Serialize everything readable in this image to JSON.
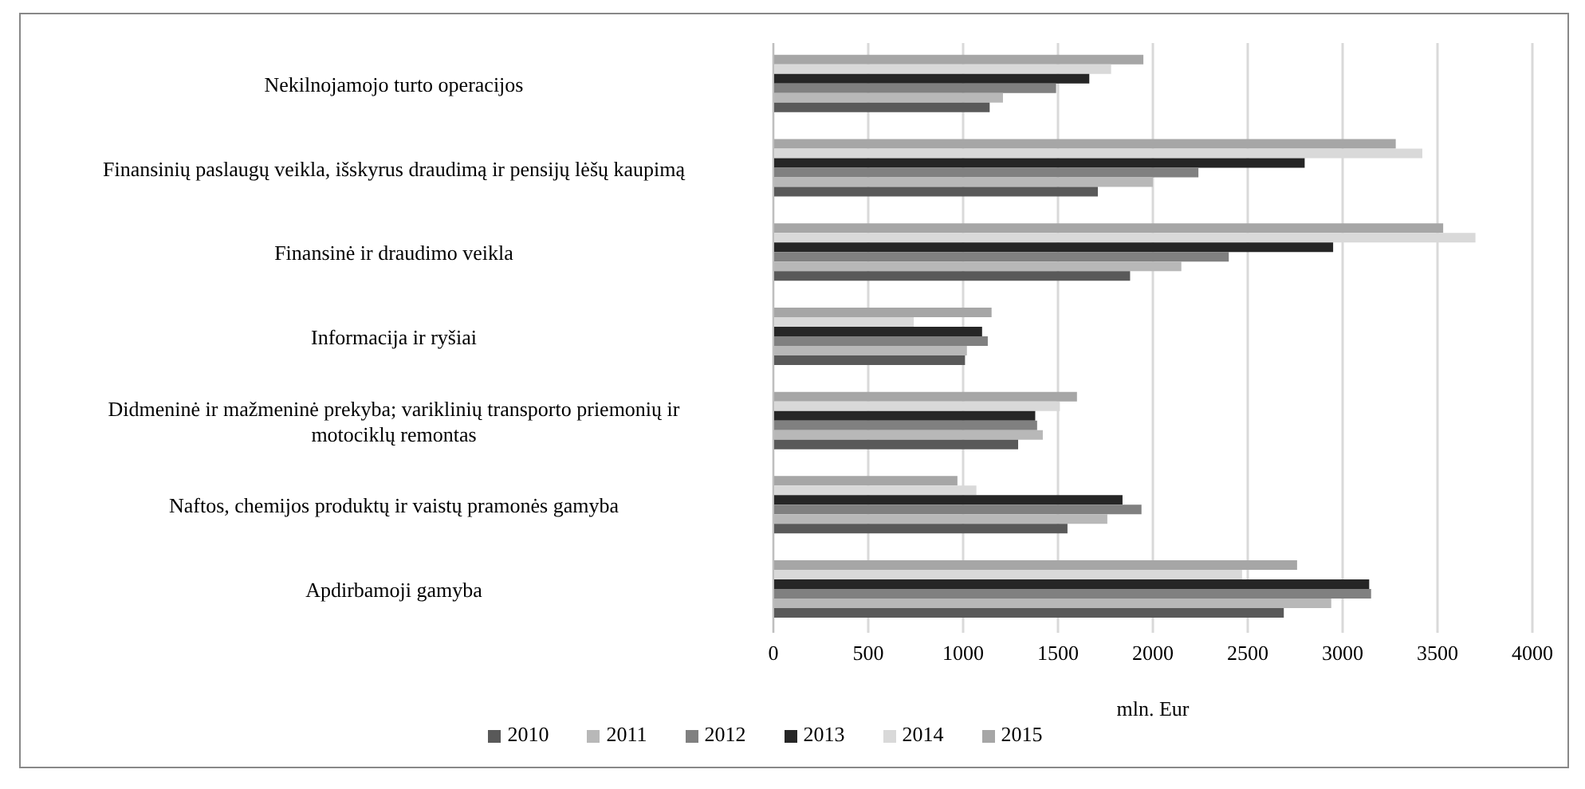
{
  "chart_data": {
    "type": "bar",
    "orientation": "horizontal",
    "xlabel": "mln. Eur",
    "categories": [
      "Nekilnojamojo turto operacijos",
      "Finansinių paslaugų veikla, išskyrus draudimą ir pensijų lėšų kaupimą",
      "Finansinė ir draudimo veikla",
      "Informacija ir ryšiai",
      "Didmeninė ir mažmeninė prekyba; variklinių transporto priemonių ir motociklų remontas",
      "Naftos, chemijos produktų ir vaistų pramonės gamyba",
      "Apdirbamoji gamyba"
    ],
    "series": [
      {
        "name": "2015",
        "color": "#a6a6a6",
        "values": [
          1950,
          3280,
          3530,
          1150,
          1600,
          970,
          2760
        ]
      },
      {
        "name": "2014",
        "color": "#d9d9d9",
        "values": [
          1780,
          3420,
          3700,
          740,
          1510,
          1070,
          2470
        ]
      },
      {
        "name": "2013",
        "color": "#262626",
        "values": [
          1665,
          2800,
          2950,
          1100,
          1380,
          1840,
          3140
        ]
      },
      {
        "name": "2012",
        "color": "#808080",
        "values": [
          1490,
          2240,
          2400,
          1130,
          1390,
          1940,
          3150
        ]
      },
      {
        "name": "2011",
        "color": "#b8b8b8",
        "values": [
          1210,
          2000,
          2150,
          1020,
          1420,
          1760,
          2940
        ]
      },
      {
        "name": "2010",
        "color": "#595959",
        "values": [
          1140,
          1710,
          1880,
          1010,
          1290,
          1550,
          2690
        ]
      }
    ],
    "xlim": [
      0,
      4000
    ],
    "xticks": [
      0,
      500,
      1000,
      1500,
      2000,
      2500,
      3000,
      3500,
      4000
    ],
    "grid": "x",
    "legend": "bottom"
  }
}
